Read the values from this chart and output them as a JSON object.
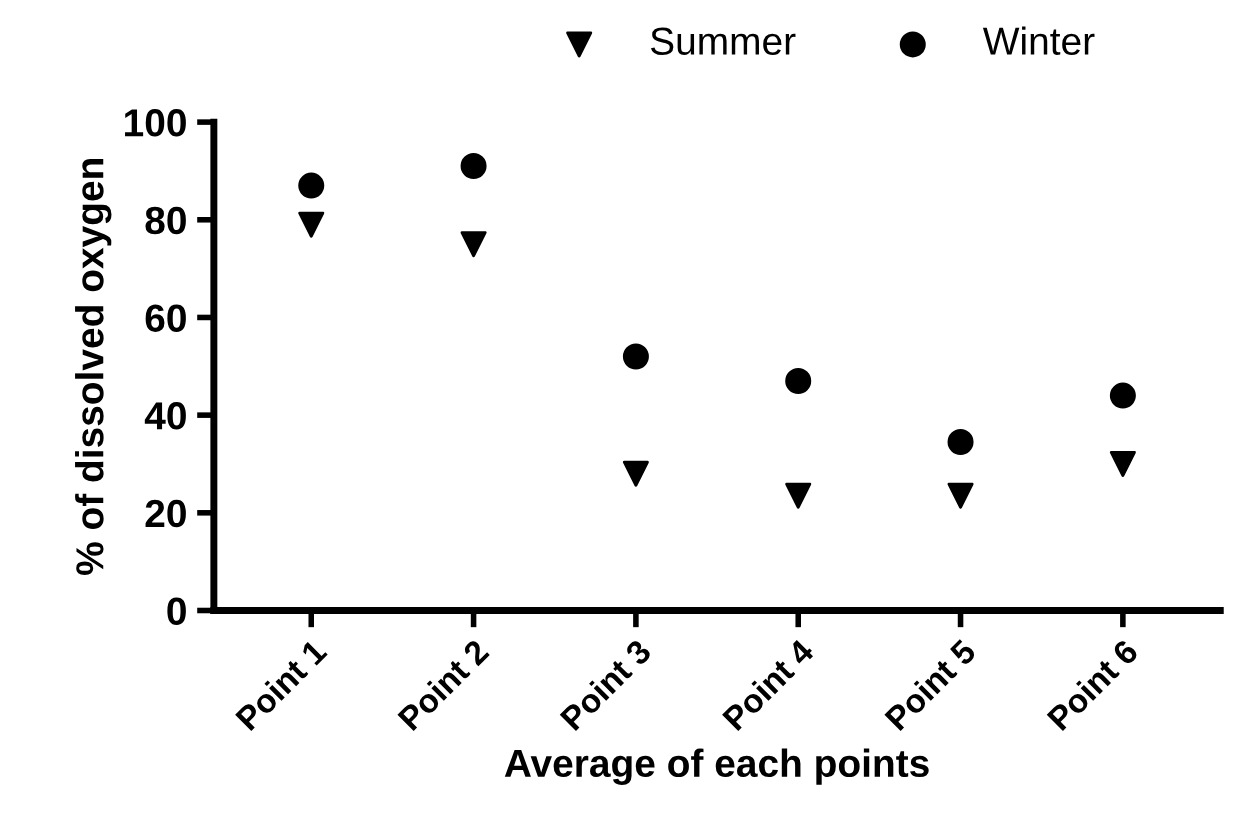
{
  "chart_data": {
    "type": "scatter",
    "xlabel": "Average of each points",
    "ylabel": "% of dissolved oxygen",
    "categories": [
      "Point 1",
      "Point 2",
      "Point 3",
      "Point 4",
      "Point 5",
      "Point 6"
    ],
    "series": [
      {
        "name": "Summer",
        "color": "#000000",
        "marker": "triangle",
        "values": [
          79,
          75,
          28,
          23.5,
          23.5,
          30
        ]
      },
      {
        "name": "Winter",
        "color": "#000000",
        "marker": "circle",
        "values": [
          87,
          91,
          52,
          47,
          34.5,
          44
        ]
      }
    ],
    "ylim": [
      0,
      100
    ],
    "yticks": [
      0,
      20,
      40,
      60,
      80,
      100
    ],
    "grid": false,
    "legend": "top"
  }
}
